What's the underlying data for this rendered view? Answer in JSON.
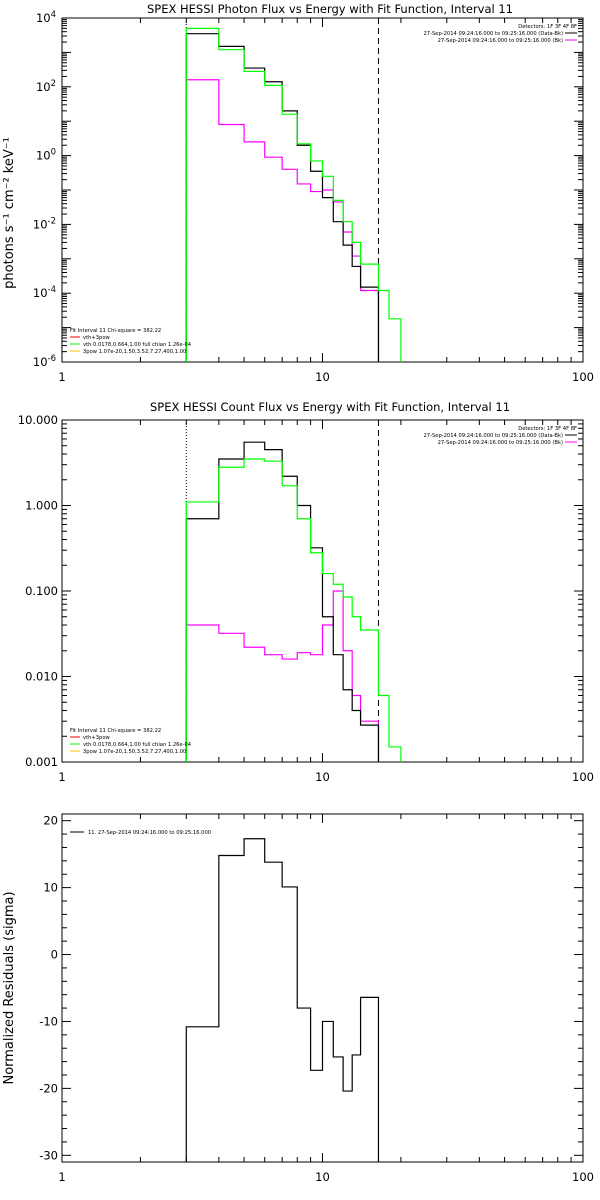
{
  "colors": {
    "black": "#000000",
    "green": "#00ff00",
    "magenta": "#ff00ff",
    "red": "#ff0000",
    "yellow": "#ffc000"
  },
  "chart_data": [
    {
      "type": "line",
      "title": "SPEX HESSI Photon Flux vs Energy with Fit Function, Interval 11",
      "ylabel": "photons s⁻¹ cm⁻² keV⁻¹",
      "xscale": "log",
      "yscale": "log",
      "xlim": [
        1,
        100
      ],
      "ylim": [
        1e-06,
        10000
      ],
      "xticks": [
        {
          "v": 1,
          "label": "1"
        },
        {
          "v": 10,
          "label": "10"
        },
        {
          "v": 100,
          "label": "100"
        }
      ],
      "yticks": [
        {
          "v": 1e-06,
          "base": "10",
          "exp": "-6"
        },
        {
          "v": 0.0001,
          "base": "10",
          "exp": "-4"
        },
        {
          "v": 0.01,
          "base": "10",
          "exp": "-2"
        },
        {
          "v": 1,
          "base": "10",
          "exp": "0"
        },
        {
          "v": 100,
          "base": "10",
          "exp": "2"
        },
        {
          "v": 10000,
          "base": "10",
          "exp": "4"
        }
      ],
      "vlines": [
        {
          "x": 3,
          "style": "dotted"
        },
        {
          "x": 16.4,
          "style": "dashed"
        }
      ],
      "edges": [
        3,
        4,
        5,
        6,
        7,
        8,
        9,
        10,
        11,
        12,
        13,
        14,
        16.4,
        18,
        20
      ],
      "series": [
        {
          "color": "black",
          "values": [
            3500,
            1500,
            350,
            140,
            20,
            2.0,
            0.35,
            0.06,
            0.012,
            0.0025,
            0.0006,
            0.00015,
            null,
            null
          ]
        },
        {
          "color": "green",
          "values": [
            5000,
            1200,
            280,
            110,
            16,
            2.2,
            0.7,
            0.25,
            0.05,
            0.012,
            0.003,
            0.0007,
            0.00012,
            1.8e-05
          ]
        },
        {
          "color": "magenta",
          "values": [
            160,
            8,
            2.5,
            0.9,
            0.4,
            0.15,
            0.09,
            0.1,
            0.045,
            0.006,
            0.0012,
            0.00012,
            null,
            null
          ]
        }
      ],
      "legend_right": {
        "header": "Detectors: 1F 3F 4F 8F",
        "entries": [
          {
            "color": "black",
            "text": "27-Sep-2014 09:24:16.000 to 09:25:16.000 (Data-Bk)"
          },
          {
            "color": "magenta",
            "text": "27-Sep-2014 09:24:16.000 to 09:25:16.000 (Bk)"
          }
        ]
      },
      "legend_left": {
        "header": "Fit Interval 11   Chi-square = 382.22",
        "entries": [
          {
            "color": "red",
            "text": "vth+3pow"
          },
          {
            "color": "green",
            "text": "vth 0.0178,0.664,1.00  full chian 1.26e-04"
          },
          {
            "color": "yellow",
            "text": "3pow 1.07e-20,1.50,3.52,7.27,400,1.00"
          }
        ]
      }
    },
    {
      "type": "line",
      "title": "SPEX HESSI Count Flux vs Energy with Fit Function, Interval 11",
      "ylabel": "",
      "xscale": "log",
      "yscale": "log",
      "xlim": [
        1,
        100
      ],
      "ylim": [
        0.001,
        10
      ],
      "xticks": [
        {
          "v": 1,
          "label": "1"
        },
        {
          "v": 10,
          "label": "10"
        },
        {
          "v": 100,
          "label": "100"
        }
      ],
      "yticks": [
        {
          "v": 0.001,
          "label": "0.001"
        },
        {
          "v": 0.01,
          "label": "0.010"
        },
        {
          "v": 0.1,
          "label": "0.100"
        },
        {
          "v": 1,
          "label": "1.000"
        },
        {
          "v": 10,
          "label": "10.000"
        }
      ],
      "vlines": [
        {
          "x": 3,
          "style": "dotted"
        },
        {
          "x": 16.4,
          "style": "dashed"
        }
      ],
      "edges": [
        3,
        4,
        5,
        6,
        7,
        8,
        9,
        10,
        11,
        12,
        13,
        14,
        16.4,
        18,
        20
      ],
      "series": [
        {
          "color": "black",
          "values": [
            0.7,
            3.5,
            5.5,
            4.5,
            2.2,
            1.0,
            0.32,
            0.05,
            0.018,
            0.007,
            0.004,
            0.0027,
            null,
            null
          ]
        },
        {
          "color": "green",
          "values": [
            1.1,
            2.8,
            3.5,
            3.3,
            1.7,
            0.7,
            0.28,
            0.16,
            0.12,
            0.085,
            0.05,
            0.035,
            0.006,
            0.0015
          ]
        },
        {
          "color": "magenta",
          "values": [
            0.04,
            0.032,
            0.022,
            0.018,
            0.016,
            0.019,
            0.018,
            0.04,
            0.1,
            0.02,
            0.006,
            0.003,
            null,
            null
          ]
        }
      ],
      "legend_right": {
        "header": "Detectors: 1F 3F 4F 8F",
        "entries": [
          {
            "color": "black",
            "text": "27-Sep-2014 09:24:16.000 to 09:25:16.000 (Data-Bk)"
          },
          {
            "color": "magenta",
            "text": "27-Sep-2014 09:24:16.000 to 09:25:16.000 (Bk)"
          }
        ]
      },
      "legend_left": {
        "header": "Fit Interval 11   Chi-square = 382.22",
        "entries": [
          {
            "color": "red",
            "text": "vth+3pow"
          },
          {
            "color": "green",
            "text": "vth 0.0178,0.664,1.00  full chian 1.26e-04"
          },
          {
            "color": "yellow",
            "text": "3pow 1.07e-20,1.50,3.52,7.27,400,1.00"
          }
        ]
      }
    },
    {
      "type": "line",
      "title": "",
      "ylabel": "Normalized Residuals (sigma)",
      "xscale": "log",
      "yscale": "linear",
      "xlim": [
        1,
        100
      ],
      "ylim": [
        -31,
        21
      ],
      "xticks": [
        {
          "v": 1,
          "label": "1"
        },
        {
          "v": 10,
          "label": "10"
        },
        {
          "v": 100,
          "label": "100"
        }
      ],
      "yticks": [
        {
          "v": -30,
          "label": "-30"
        },
        {
          "v": -20,
          "label": "-20"
        },
        {
          "v": -10,
          "label": "-10"
        },
        {
          "v": 0,
          "label": "0"
        },
        {
          "v": 10,
          "label": "10"
        },
        {
          "v": 20,
          "label": "20"
        }
      ],
      "vlines": [],
      "edges": [
        3,
        4,
        5,
        6,
        7,
        8,
        9,
        10,
        11,
        12,
        13,
        14,
        16.4
      ],
      "series": [
        {
          "color": "black",
          "values": [
            -10.8,
            14.8,
            17.3,
            13.8,
            10.1,
            -8.0,
            -17.3,
            -10.0,
            -15.3,
            -20.4,
            -15.0,
            -6.4
          ]
        }
      ],
      "legend_inline": [
        {
          "color": "black",
          "text": "11. 27-Sep-2014 09:24:16.000 to 09:25:16.000"
        }
      ]
    }
  ]
}
